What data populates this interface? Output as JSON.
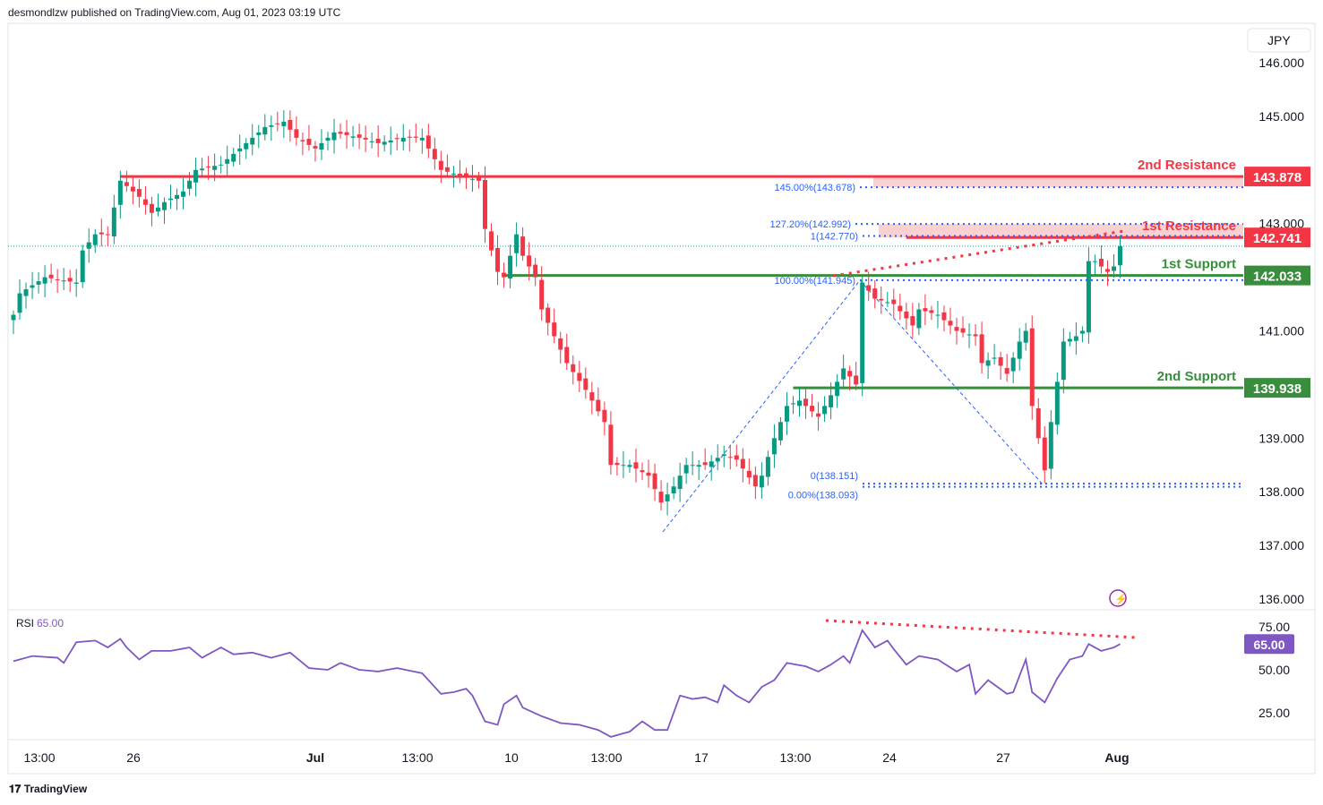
{
  "header": {
    "publisher": "desmondlzw published on TradingView.com, Aug 01, 2023 03:19 UTC"
  },
  "footer": {
    "brand": "TradingView"
  },
  "colors": {
    "up": "#089981",
    "down": "#f23645",
    "resistance": "#f23645",
    "support": "#388e3c",
    "fib": "#2962ff",
    "rsi": "#7e57c2"
  },
  "chart_data": {
    "type": "candlestick",
    "symbol_currency": "JPY",
    "ylim": [
      135.9,
      146.4
    ],
    "y_ticks": [
      "146.000",
      "145.000",
      "143.000",
      "141.000",
      "139.000",
      "138.000",
      "137.000",
      "136.000"
    ],
    "y_tick_values": [
      146,
      145,
      143,
      141,
      139,
      138,
      137,
      136
    ],
    "x_ticks": [
      "13:00",
      "26",
      "Jul",
      "13:00",
      "10",
      "13:00",
      "17",
      "13:00",
      "24",
      "27",
      "Aug"
    ],
    "x_tick_candle_index": [
      5,
      20,
      48,
      65,
      80,
      95,
      110,
      125,
      140,
      158,
      176
    ],
    "close_keypoints": [
      [
        0,
        141.3
      ],
      [
        1,
        141.7
      ],
      [
        5,
        142.0
      ],
      [
        10,
        141.9
      ],
      [
        11,
        142.5
      ],
      [
        13,
        142.8
      ],
      [
        15,
        142.8
      ],
      [
        17,
        143.8
      ],
      [
        20,
        143.5
      ],
      [
        22,
        143.2
      ],
      [
        24,
        143.4
      ],
      [
        27,
        143.6
      ],
      [
        29,
        144.0
      ],
      [
        33,
        144.1
      ],
      [
        36,
        144.4
      ],
      [
        40,
        144.8
      ],
      [
        43,
        144.9
      ],
      [
        45,
        144.6
      ],
      [
        48,
        144.4
      ],
      [
        51,
        144.7
      ],
      [
        55,
        144.6
      ],
      [
        58,
        144.5
      ],
      [
        62,
        144.6
      ],
      [
        65,
        144.6
      ],
      [
        68,
        144.0
      ],
      [
        71,
        143.9
      ],
      [
        74,
        143.8
      ],
      [
        75,
        142.9
      ],
      [
        77,
        142.1
      ],
      [
        78,
        142.0
      ],
      [
        80,
        142.8
      ],
      [
        81,
        142.4
      ],
      [
        83,
        142.0
      ],
      [
        84,
        141.4
      ],
      [
        86,
        140.9
      ],
      [
        88,
        140.4
      ],
      [
        91,
        139.9
      ],
      [
        94,
        139.3
      ],
      [
        95,
        138.5
      ],
      [
        98,
        138.5
      ],
      [
        101,
        138.3
      ],
      [
        103,
        137.8
      ],
      [
        105,
        138.1
      ],
      [
        107,
        138.5
      ],
      [
        110,
        138.5
      ],
      [
        113,
        138.7
      ],
      [
        115,
        138.6
      ],
      [
        118,
        138.1
      ],
      [
        119,
        138.3
      ],
      [
        121,
        139.0
      ],
      [
        123,
        139.6
      ],
      [
        125,
        139.7
      ],
      [
        128,
        139.4
      ],
      [
        130,
        139.8
      ],
      [
        132,
        140.3
      ],
      [
        134,
        140.0
      ],
      [
        135,
        141.9
      ],
      [
        137,
        141.6
      ],
      [
        140,
        141.5
      ],
      [
        143,
        141.1
      ],
      [
        144,
        141.4
      ],
      [
        147,
        141.3
      ],
      [
        150,
        141.0
      ],
      [
        153,
        140.9
      ],
      [
        154,
        140.4
      ],
      [
        156,
        140.5
      ],
      [
        158,
        140.2
      ],
      [
        160,
        140.8
      ],
      [
        161,
        141.0
      ],
      [
        162,
        139.6
      ],
      [
        164,
        138.4
      ],
      [
        165,
        139.3
      ],
      [
        167,
        140.8
      ],
      [
        169,
        140.9
      ],
      [
        170,
        141.0
      ],
      [
        171,
        142.3
      ],
      [
        172,
        142.3
      ],
      [
        174,
        142.1
      ],
      [
        175,
        142.2
      ],
      [
        176,
        142.58
      ]
    ],
    "rsi": {
      "label": "RSI",
      "value": "65.00",
      "ticks": [
        "75.00",
        "50.00",
        "25.00"
      ],
      "tick_values": [
        75,
        50,
        25
      ],
      "keypoints": [
        [
          0,
          55
        ],
        [
          3,
          58
        ],
        [
          7,
          57
        ],
        [
          8,
          54
        ],
        [
          10,
          66
        ],
        [
          13,
          67
        ],
        [
          15,
          63
        ],
        [
          17,
          68
        ],
        [
          18,
          63
        ],
        [
          20,
          56
        ],
        [
          22,
          61
        ],
        [
          25,
          61
        ],
        [
          28,
          63
        ],
        [
          30,
          57
        ],
        [
          33,
          63
        ],
        [
          35,
          59
        ],
        [
          38,
          60
        ],
        [
          41,
          57
        ],
        [
          44,
          60
        ],
        [
          47,
          51
        ],
        [
          50,
          50
        ],
        [
          52,
          54
        ],
        [
          55,
          50
        ],
        [
          58,
          49
        ],
        [
          61,
          51
        ],
        [
          65,
          48
        ],
        [
          68,
          36
        ],
        [
          70,
          37
        ],
        [
          72,
          39
        ],
        [
          73,
          35
        ],
        [
          75,
          20
        ],
        [
          77,
          18
        ],
        [
          78,
          30
        ],
        [
          80,
          35
        ],
        [
          81,
          28
        ],
        [
          84,
          23
        ],
        [
          87,
          19
        ],
        [
          90,
          18
        ],
        [
          93,
          15
        ],
        [
          95,
          11
        ],
        [
          98,
          14
        ],
        [
          100,
          20
        ],
        [
          102,
          15
        ],
        [
          104,
          15
        ],
        [
          106,
          35
        ],
        [
          108,
          33
        ],
        [
          110,
          34
        ],
        [
          112,
          31
        ],
        [
          113,
          41
        ],
        [
          115,
          35
        ],
        [
          117,
          31
        ],
        [
          119,
          40
        ],
        [
          121,
          44
        ],
        [
          123,
          54
        ],
        [
          126,
          52
        ],
        [
          128,
          49
        ],
        [
          130,
          53
        ],
        [
          132,
          58
        ],
        [
          133,
          54
        ],
        [
          135,
          73
        ],
        [
          137,
          63
        ],
        [
          139,
          67
        ],
        [
          140,
          62
        ],
        [
          142,
          53
        ],
        [
          144,
          58
        ],
        [
          147,
          56
        ],
        [
          150,
          49
        ],
        [
          152,
          53
        ],
        [
          153,
          36
        ],
        [
          155,
          44
        ],
        [
          158,
          36
        ],
        [
          159,
          37
        ],
        [
          161,
          56
        ],
        [
          162,
          37
        ],
        [
          164,
          31
        ],
        [
          166,
          45
        ],
        [
          168,
          56
        ],
        [
          170,
          58
        ],
        [
          171,
          65
        ],
        [
          173,
          61
        ],
        [
          175,
          63
        ],
        [
          176,
          65
        ]
      ]
    },
    "levels": [
      {
        "name": "2nd Resistance",
        "price": "143.878",
        "value": 143.878,
        "kind": "resistance",
        "from": 17
      },
      {
        "name": "1st Resistance",
        "price": "142.741",
        "value": 142.741,
        "kind": "resistance",
        "from": 142
      },
      {
        "name": "1st Support",
        "price": "142.033",
        "value": 142.033,
        "kind": "support",
        "from": 78
      },
      {
        "name": "2nd Support",
        "price": "139.938",
        "value": 139.938,
        "kind": "support",
        "from": 124
      }
    ],
    "fib": [
      {
        "label": "145.00%(143.678)",
        "value": 143.678
      },
      {
        "label": "127.20%(142.992)",
        "value": 142.992
      },
      {
        "label": "1(142.770)",
        "value": 142.77
      },
      {
        "label": "100.00%(141.945)",
        "value": 141.945
      },
      {
        "label": "0.00%(138.093)",
        "value": 138.093
      },
      {
        "label": "0(138.151)",
        "value": 138.151
      }
    ],
    "last_price": 142.58
  }
}
